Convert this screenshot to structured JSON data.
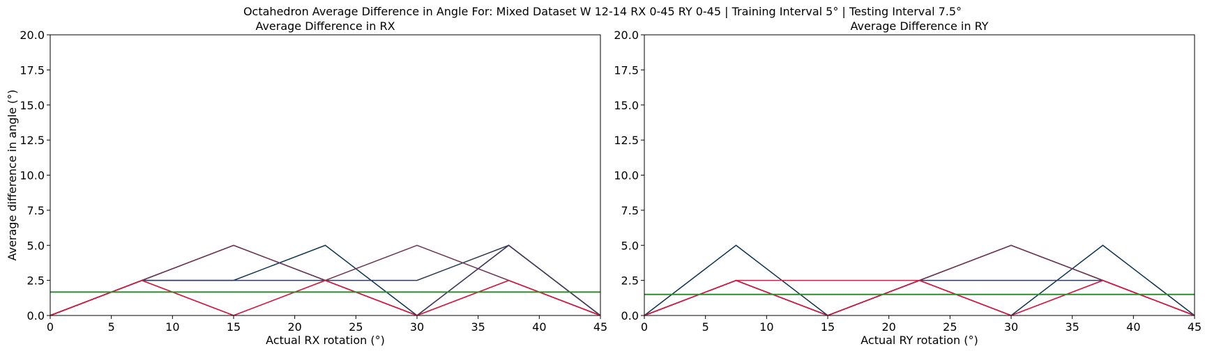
{
  "figure": {
    "suptitle": "Octahedron Average Difference in Angle For: Mixed Dataset W 12-14 RX 0-45 RY 0-45 | Training Interval 5° | Testing Interval 7.5°"
  },
  "chart_data": [
    {
      "type": "line",
      "title": "Average Difference in RX",
      "xlabel": "Actual RX rotation (°)",
      "ylabel": "Average difference in angle (°)",
      "xlim": [
        0,
        45
      ],
      "ylim": [
        0,
        20
      ],
      "xticks": [
        "0",
        "5",
        "10",
        "15",
        "20",
        "25",
        "30",
        "35",
        "40",
        "45"
      ],
      "yticks": [
        "0.0",
        "2.5",
        "5.0",
        "7.5",
        "10.0",
        "12.5",
        "15.0",
        "17.5",
        "20.0"
      ],
      "grid": false,
      "x": [
        0,
        7.5,
        15,
        22.5,
        30,
        37.5,
        45
      ],
      "series": [
        {
          "color": "#0b3552",
          "values": [
            0,
            2.5,
            2.5,
            5.0,
            0,
            5.0,
            0
          ]
        },
        {
          "color": "#2f3a58",
          "values": [
            0,
            2.5,
            2.5,
            2.5,
            2.5,
            5.0,
            0
          ]
        },
        {
          "color": "#4a3a5c",
          "values": [
            0,
            2.5,
            5.0,
            2.5,
            0,
            5.0,
            0
          ]
        },
        {
          "color": "#6e3550",
          "values": [
            0,
            2.5,
            5.0,
            2.5,
            5.0,
            2.5,
            0
          ]
        },
        {
          "color": "#9a2f4c",
          "values": [
            0,
            2.5,
            0,
            2.5,
            0,
            2.5,
            0
          ]
        },
        {
          "color": "#dc143c",
          "values": [
            0,
            2.5,
            0,
            2.5,
            0,
            2.5,
            0
          ]
        }
      ],
      "mean_line": {
        "color": "#2e8b2e",
        "value": 1.67
      }
    },
    {
      "type": "line",
      "title": "Average Difference in RY",
      "xlabel": "Actual RY rotation (°)",
      "ylabel": "",
      "xlim": [
        0,
        45
      ],
      "ylim": [
        0,
        20
      ],
      "xticks": [
        "0",
        "5",
        "10",
        "15",
        "20",
        "25",
        "30",
        "35",
        "40",
        "45"
      ],
      "yticks": [
        "0.0",
        "2.5",
        "5.0",
        "7.5",
        "10.0",
        "12.5",
        "15.0",
        "17.5",
        "20.0"
      ],
      "grid": false,
      "x": [
        0,
        7.5,
        15,
        22.5,
        30,
        37.5,
        45
      ],
      "series": [
        {
          "color": "#0b3552",
          "values": [
            0,
            5.0,
            0,
            2.5,
            0,
            5.0,
            0
          ]
        },
        {
          "color": "#2f3a58",
          "values": [
            0,
            2.5,
            0,
            2.5,
            2.5,
            2.5,
            0
          ]
        },
        {
          "color": "#4a3a5c",
          "values": [
            0,
            2.5,
            0,
            2.5,
            5.0,
            2.5,
            0
          ]
        },
        {
          "color": "#6e3550",
          "values": [
            0,
            2.5,
            0,
            2.5,
            5.0,
            2.5,
            0
          ]
        },
        {
          "color": "#c22848",
          "values": [
            0,
            2.5,
            2.5,
            2.5,
            0,
            2.5,
            0
          ]
        },
        {
          "color": "#dc143c",
          "values": [
            0,
            2.5,
            0,
            2.5,
            0,
            2.5,
            0
          ]
        }
      ],
      "mean_line": {
        "color": "#2e8b2e",
        "value": 1.5
      }
    }
  ]
}
